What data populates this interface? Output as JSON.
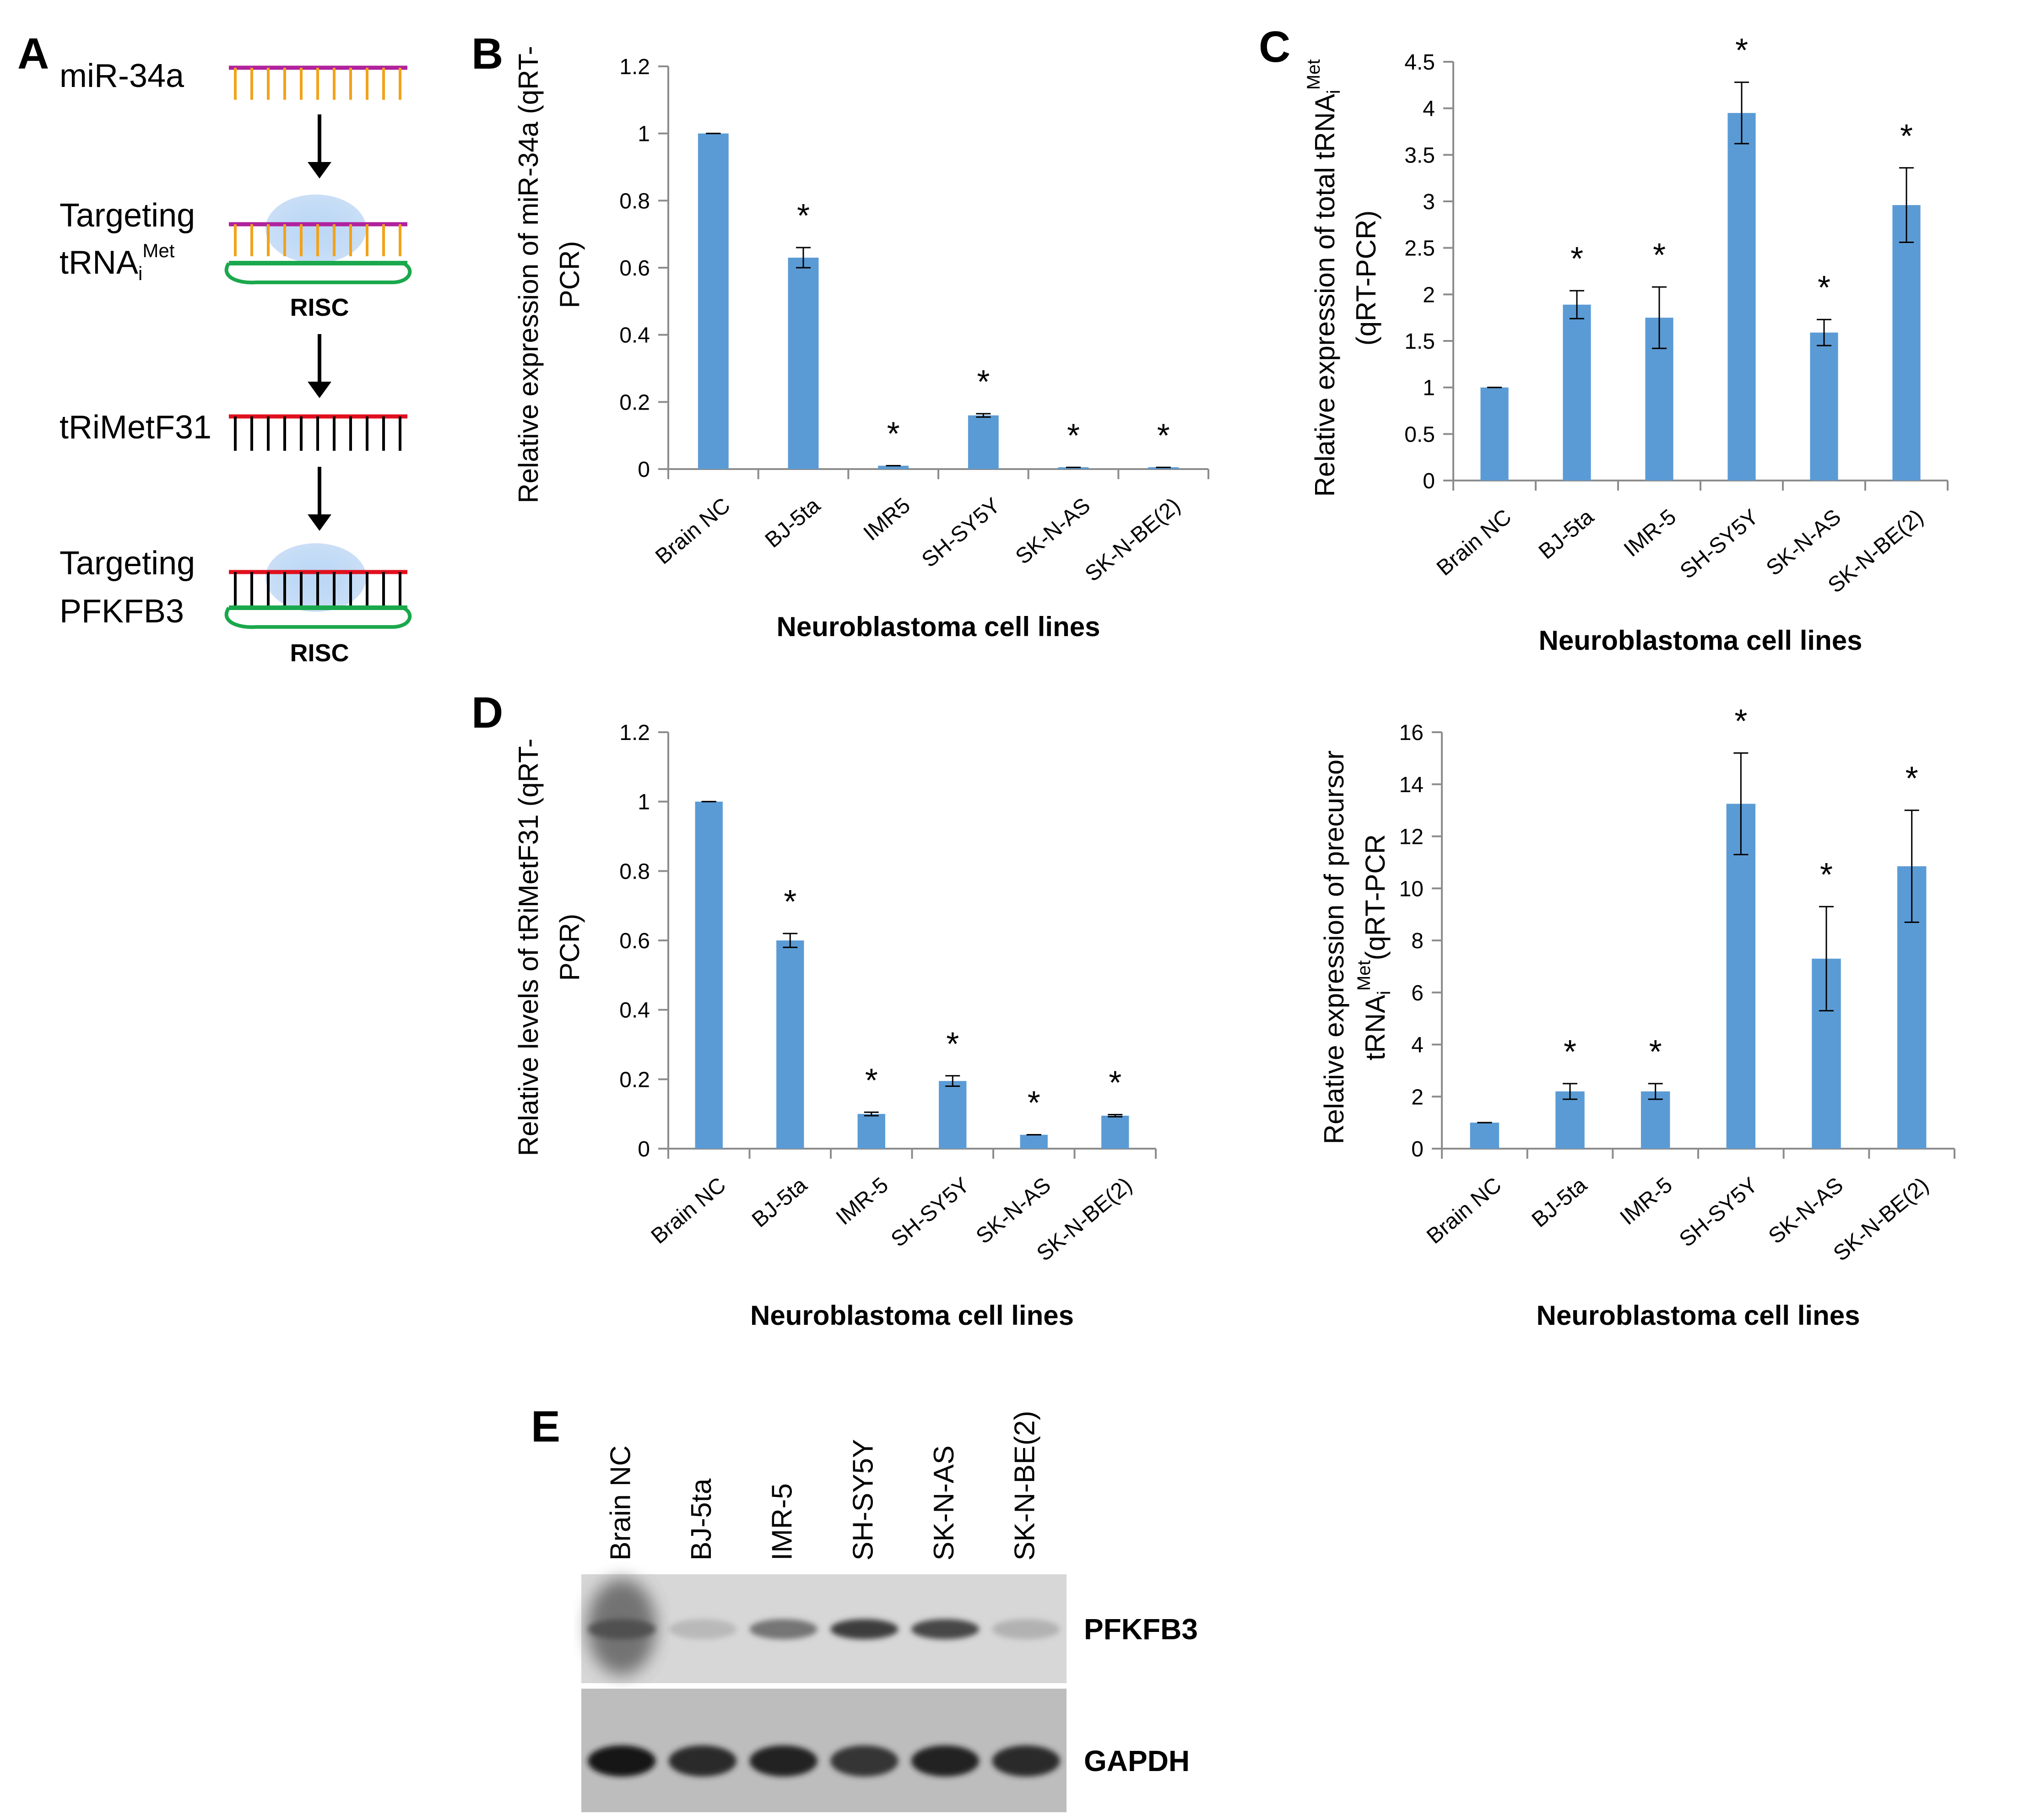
{
  "colors": {
    "bar": "#5b9bd5",
    "mirna_strand": "#b0229e",
    "mirna_teeth": "#f2a21a",
    "trna_strand": "#e0101e",
    "risc_loop": "#1aa84c",
    "black": "#000000",
    "risc_blob": "#9fc5ef"
  },
  "panel_a": {
    "letter": "A",
    "steps": [
      {
        "label": "miR-34a",
        "strand": "mirna",
        "has_risc": false
      },
      {
        "label_line1": "Targeting",
        "label_line2": "tRNA",
        "subscript": "i",
        "superscript": "Met",
        "strand": "mirna",
        "has_risc": true,
        "risc_label": "RISC"
      },
      {
        "label": "tRiMetF31",
        "strand": "trna",
        "has_risc": false
      },
      {
        "label_line1": "Targeting",
        "label_line2": "PFKFB3",
        "strand": "trna",
        "has_risc": true,
        "risc_label": "RISC"
      }
    ],
    "arrow_icon": "down-arrow-icon"
  },
  "chart_data": [
    {
      "panel": "B",
      "type": "bar",
      "ylabel_line1": "Relative expression of miR-34a (qRT-",
      "ylabel_line2": "PCR)",
      "xlabel": "Neuroblastoma cell lines",
      "categories": [
        "Brain NC",
        "BJ-5ta",
        "IMR5",
        "SH-SY5Y",
        "SK-N-AS",
        "SK-N-BE(2)"
      ],
      "values": [
        1.0,
        0.63,
        0.01,
        0.16,
        0.005,
        0.005
      ],
      "errors": [
        0.0,
        0.03,
        0.0,
        0.005,
        0.0,
        0.0
      ],
      "significant": [
        false,
        true,
        true,
        true,
        true,
        true
      ],
      "significance_marker": "*",
      "ylim": [
        0,
        1.2
      ],
      "yticks": [
        0,
        0.2,
        0.4,
        0.6,
        0.8,
        1,
        1.2
      ],
      "ytick_labels": [
        "0",
        "0.2",
        "0.4",
        "0.6",
        "0.8",
        "1",
        "1.2"
      ],
      "grid": false,
      "legend": "none"
    },
    {
      "panel": "C",
      "type": "bar",
      "ylabel_line1": "Relative expression of total tRNA",
      "ylabel_line1_sub": "i",
      "ylabel_line1_sup": "Met",
      "ylabel_line2": "(qRT-PCR)",
      "xlabel": "Neuroblastoma cell lines",
      "categories": [
        "Brain NC",
        "BJ-5ta",
        "IMR-5",
        "SH-SY5Y",
        "SK-N-AS",
        "SK-N-BE(2)"
      ],
      "values": [
        1.0,
        1.89,
        1.75,
        3.95,
        1.59,
        2.96
      ],
      "errors": [
        0.0,
        0.15,
        0.33,
        0.33,
        0.14,
        0.4
      ],
      "significant": [
        false,
        true,
        true,
        true,
        true,
        true
      ],
      "significance_marker": "*",
      "ylim": [
        0,
        4.5
      ],
      "yticks": [
        0,
        0.5,
        1,
        1.5,
        2,
        2.5,
        3,
        3.5,
        4,
        4.5
      ],
      "ytick_labels": [
        "0",
        "0.5",
        "1",
        "1.5",
        "2",
        "2.5",
        "3",
        "3.5",
        "4",
        "4.5"
      ],
      "grid": false,
      "legend": "none"
    },
    {
      "panel": "D",
      "type": "bar",
      "ylabel_line1": "Relative levels of tRiMetF31 (qRT-",
      "ylabel_line2": "PCR)",
      "xlabel": "Neuroblastoma cell lines",
      "categories": [
        "Brain NC",
        "BJ-5ta",
        "IMR-5",
        "SH-SY5Y",
        "SK-N-AS",
        "SK-N-BE(2)"
      ],
      "values": [
        1.0,
        0.6,
        0.1,
        0.195,
        0.04,
        0.095
      ],
      "errors": [
        0.0,
        0.02,
        0.005,
        0.015,
        0.0,
        0.003
      ],
      "significant": [
        false,
        true,
        true,
        true,
        true,
        true
      ],
      "significance_marker": "*",
      "ylim": [
        0,
        1.2
      ],
      "yticks": [
        0,
        0.2,
        0.4,
        0.6,
        0.8,
        1,
        1.2
      ],
      "ytick_labels": [
        "0",
        "0.2",
        "0.4",
        "0.6",
        "0.8",
        "1",
        "1.2"
      ],
      "grid": false,
      "legend": "none"
    },
    {
      "panel": "",
      "type": "bar",
      "ylabel_line1": "Relative expression of precursor",
      "ylabel_line2": "tRNA",
      "ylabel_line2_sub": "i",
      "ylabel_line2_sup": "Met",
      "ylabel_line2_tail": "(qRT-PCR",
      "xlabel": "Neuroblastoma cell lines",
      "categories": [
        "Brain NC",
        "BJ-5ta",
        "IMR-5",
        "SH-SY5Y",
        "SK-N-AS",
        "SK-N-BE(2)"
      ],
      "values": [
        1.0,
        2.2,
        2.2,
        13.25,
        7.3,
        10.85
      ],
      "errors": [
        0.0,
        0.3,
        0.3,
        1.95,
        2.0,
        2.15
      ],
      "significant": [
        false,
        true,
        true,
        true,
        true,
        true
      ],
      "significance_marker": "*",
      "ylim": [
        0,
        16
      ],
      "yticks": [
        0,
        2,
        4,
        6,
        8,
        10,
        12,
        14,
        16
      ],
      "ytick_labels": [
        "0",
        "2",
        "4",
        "6",
        "8",
        "10",
        "12",
        "14",
        "16"
      ],
      "grid": false,
      "legend": "none"
    }
  ],
  "panel_letters": {
    "b": "B",
    "c": "C",
    "d": "D",
    "e": "E"
  },
  "panel_e": {
    "letter": "E",
    "lanes": [
      "Brain NC",
      "BJ-5ta",
      "IMR-5",
      "SH-SY5Y",
      "SK-N-AS",
      "SK-N-BE(2)"
    ],
    "bands": [
      {
        "label": "PFKFB3",
        "intensities": [
          0.55,
          0.08,
          0.45,
          0.75,
          0.7,
          0.12
        ]
      },
      {
        "label": "GAPDH",
        "intensities": [
          0.95,
          0.85,
          0.9,
          0.8,
          0.9,
          0.85
        ]
      }
    ]
  }
}
